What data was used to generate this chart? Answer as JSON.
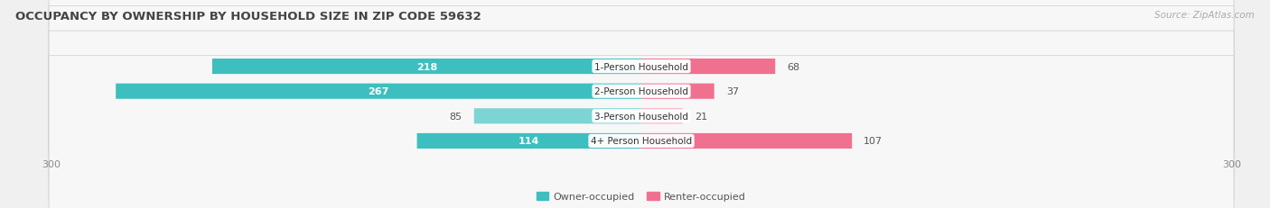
{
  "title": "OCCUPANCY BY OWNERSHIP BY HOUSEHOLD SIZE IN ZIP CODE 59632",
  "source": "Source: ZipAtlas.com",
  "categories": [
    "1-Person Household",
    "2-Person Household",
    "3-Person Household",
    "4+ Person Household"
  ],
  "owner_values": [
    218,
    267,
    85,
    114
  ],
  "renter_values": [
    68,
    37,
    21,
    107
  ],
  "owner_color": "#3DBFBF",
  "owner_color_light": "#7DD4D4",
  "renter_color": "#F07090",
  "renter_color_light": "#F9A8BC",
  "axis_max": 300,
  "bg_color": "#f0f0f0",
  "bar_bg_color": "#e0e0e0",
  "row_bg_color": "#f7f7f7",
  "title_fontsize": 9.5,
  "source_fontsize": 7.5,
  "tick_fontsize": 8,
  "bar_label_fontsize": 8,
  "cat_label_fontsize": 7.5,
  "legend_fontsize": 8,
  "bar_height": 0.62,
  "owner_large_threshold": 100
}
